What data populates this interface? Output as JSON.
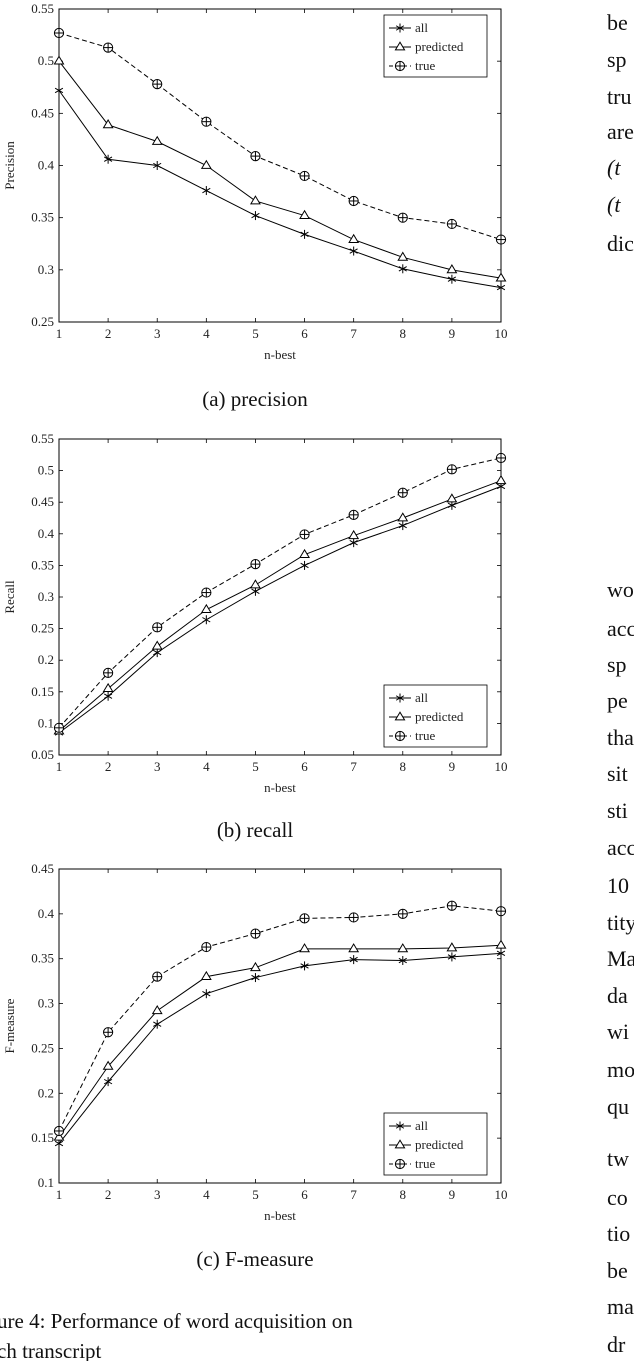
{
  "chart_data": [
    {
      "id": "precision",
      "type": "line",
      "caption": "(a) precision",
      "xlabel": "n-best",
      "ylabel": "Precision",
      "x": [
        1,
        2,
        3,
        4,
        5,
        6,
        7,
        8,
        9,
        10
      ],
      "xlim": [
        1,
        10
      ],
      "ylim": [
        0.25,
        0.55
      ],
      "yticks": [
        0.25,
        0.3,
        0.35,
        0.4,
        0.45,
        0.5,
        0.55
      ],
      "ytick_labels": [
        "0.25",
        "0.3",
        "0.35",
        "0.4",
        "0.45",
        "0.5",
        "0.55"
      ],
      "legend_position": "top-right",
      "series": [
        {
          "name": "all",
          "marker": "star",
          "dash": "solid",
          "values": [
            0.472,
            0.406,
            0.4,
            0.376,
            0.352,
            0.334,
            0.318,
            0.301,
            0.291,
            0.283
          ]
        },
        {
          "name": "predicted",
          "marker": "triangle",
          "dash": "solid",
          "values": [
            0.5,
            0.439,
            0.423,
            0.4,
            0.366,
            0.352,
            0.329,
            0.312,
            0.3,
            0.292
          ]
        },
        {
          "name": "true",
          "marker": "circle-plus",
          "dash": "dashed",
          "values": [
            0.527,
            0.513,
            0.478,
            0.442,
            0.409,
            0.39,
            0.366,
            0.35,
            0.344,
            0.329
          ]
        }
      ]
    },
    {
      "id": "recall",
      "type": "line",
      "caption": "(b) recall",
      "xlabel": "n-best",
      "ylabel": "Recall",
      "x": [
        1,
        2,
        3,
        4,
        5,
        6,
        7,
        8,
        9,
        10
      ],
      "xlim": [
        1,
        10
      ],
      "ylim": [
        0.05,
        0.55
      ],
      "yticks": [
        0.05,
        0.1,
        0.15,
        0.2,
        0.25,
        0.3,
        0.35,
        0.4,
        0.45,
        0.5,
        0.55
      ],
      "ytick_labels": [
        "0.05",
        "0.1",
        "0.15",
        "0.2",
        "0.25",
        "0.3",
        "0.35",
        "0.4",
        "0.45",
        "0.5",
        "0.55"
      ],
      "legend_position": "bottom-right",
      "series": [
        {
          "name": "all",
          "marker": "star",
          "dash": "solid",
          "values": [
            0.085,
            0.143,
            0.212,
            0.264,
            0.309,
            0.35,
            0.386,
            0.413,
            0.445,
            0.475
          ]
        },
        {
          "name": "predicted",
          "marker": "triangle",
          "dash": "solid",
          "values": [
            0.088,
            0.155,
            0.222,
            0.28,
            0.319,
            0.367,
            0.397,
            0.425,
            0.455,
            0.484
          ]
        },
        {
          "name": "true",
          "marker": "circle-plus",
          "dash": "dashed",
          "values": [
            0.093,
            0.18,
            0.252,
            0.307,
            0.352,
            0.399,
            0.43,
            0.465,
            0.502,
            0.52
          ]
        }
      ]
    },
    {
      "id": "fmeasure",
      "type": "line",
      "caption": "(c) F-measure",
      "xlabel": "n-best",
      "ylabel": "F-measure",
      "x": [
        1,
        2,
        3,
        4,
        5,
        6,
        7,
        8,
        9,
        10
      ],
      "xlim": [
        1,
        10
      ],
      "ylim": [
        0.1,
        0.45
      ],
      "yticks": [
        0.1,
        0.15,
        0.2,
        0.25,
        0.3,
        0.35,
        0.4,
        0.45
      ],
      "ytick_labels": [
        "0.1",
        "0.15",
        "0.2",
        "0.25",
        "0.3",
        "0.35",
        "0.4",
        "0.45"
      ],
      "legend_position": "bottom-right",
      "series": [
        {
          "name": "all",
          "marker": "star",
          "dash": "solid",
          "values": [
            0.144,
            0.213,
            0.277,
            0.311,
            0.329,
            0.342,
            0.349,
            0.348,
            0.352,
            0.356
          ]
        },
        {
          "name": "predicted",
          "marker": "triangle",
          "dash": "solid",
          "values": [
            0.151,
            0.23,
            0.292,
            0.33,
            0.34,
            0.361,
            0.361,
            0.361,
            0.362,
            0.365
          ]
        },
        {
          "name": "true",
          "marker": "circle-plus",
          "dash": "dashed",
          "values": [
            0.158,
            0.268,
            0.33,
            0.363,
            0.378,
            0.395,
            0.396,
            0.4,
            0.409,
            0.403
          ]
        }
      ]
    }
  ],
  "figure_caption": "ure 4:  Performance of word acquisition on",
  "figure_caption_cut": "ch transcript",
  "right_column_fragments": [
    "be",
    "sp",
    "tru",
    "are",
    "(t",
    "(t",
    "dic",
    "wo",
    "acc",
    "sp",
    "pe",
    "tha",
    "sit",
    "sti",
    "acc",
    "10",
    "tity",
    "Ma",
    "da",
    "wi",
    "mo",
    "qu",
    "tw",
    "co",
    "tio",
    "be",
    "ma",
    "dr"
  ]
}
